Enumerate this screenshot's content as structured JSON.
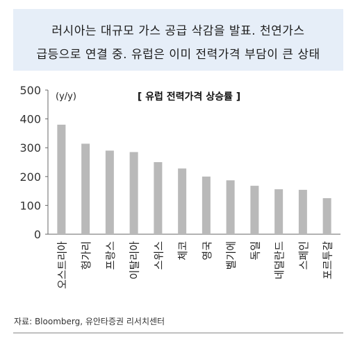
{
  "header": {
    "line1": "러시아는 대규모 가스 공급 삭감을 발표. 천연가스",
    "line2": "급등으로 연결 중. 유럽은 이미 전력가격 부담이 큰 상태"
  },
  "chart_data": {
    "type": "bar",
    "title": "[ 유럽 전력가격 상승률 ]",
    "unit_label": "(y/y)",
    "categories": [
      "오스트리아",
      "헝가리",
      "프랑스",
      "이탈리아",
      "스위스",
      "체코",
      "영국",
      "벨기에",
      "독일",
      "네덜란드",
      "스페인",
      "포르투갈"
    ],
    "values": [
      380,
      314,
      290,
      285,
      250,
      228,
      200,
      187,
      168,
      156,
      154,
      125
    ],
    "ylim": [
      0,
      500
    ],
    "yticks": [
      0,
      100,
      200,
      300,
      400,
      500
    ],
    "bar_color": "#b9b9b9",
    "grid": false
  },
  "source": "자료: Bloomberg, 유안타증권 리서치센터"
}
